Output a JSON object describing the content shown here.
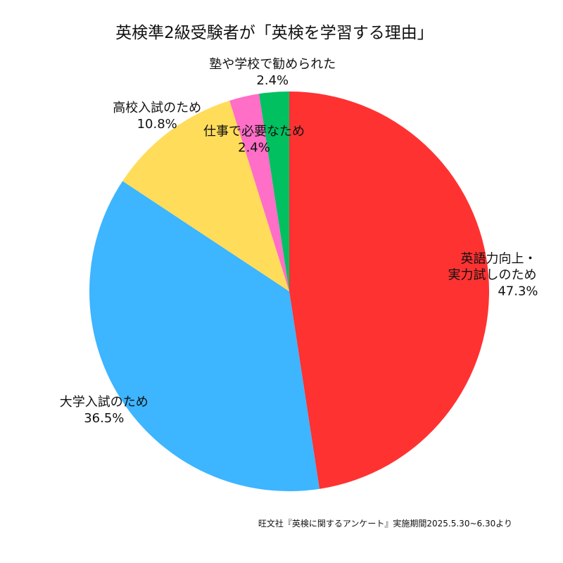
{
  "chart_data": {
    "type": "pie",
    "title": "英検準2級受験者が「英検を学習する理由」",
    "slices": [
      {
        "label_lines": [
          "英語力向上・",
          "実力試しのため"
        ],
        "value": 47.3,
        "value_text": "47.3%",
        "color": "#ff3232"
      },
      {
        "label_lines": [
          "大学入試のため"
        ],
        "value": 36.5,
        "value_text": "36.5%",
        "color": "#3db5ff"
      },
      {
        "label_lines": [
          "高校入試のため"
        ],
        "value": 10.8,
        "value_text": "10.8%",
        "color": "#ffdc5a"
      },
      {
        "label_lines": [
          "仕事で必要なため"
        ],
        "value": 2.4,
        "value_text": "2.4%",
        "color": "#ff6ec7"
      },
      {
        "label_lines": [
          "塾や学校で勧められた"
        ],
        "value": 2.4,
        "value_text": "2.4%",
        "color": "#00c060"
      }
    ],
    "start_angle": "12 o'clock",
    "direction": "clockwise",
    "source": "旺文社『英検に関するアンケート』実施期間2025.5.30~6.30より"
  }
}
